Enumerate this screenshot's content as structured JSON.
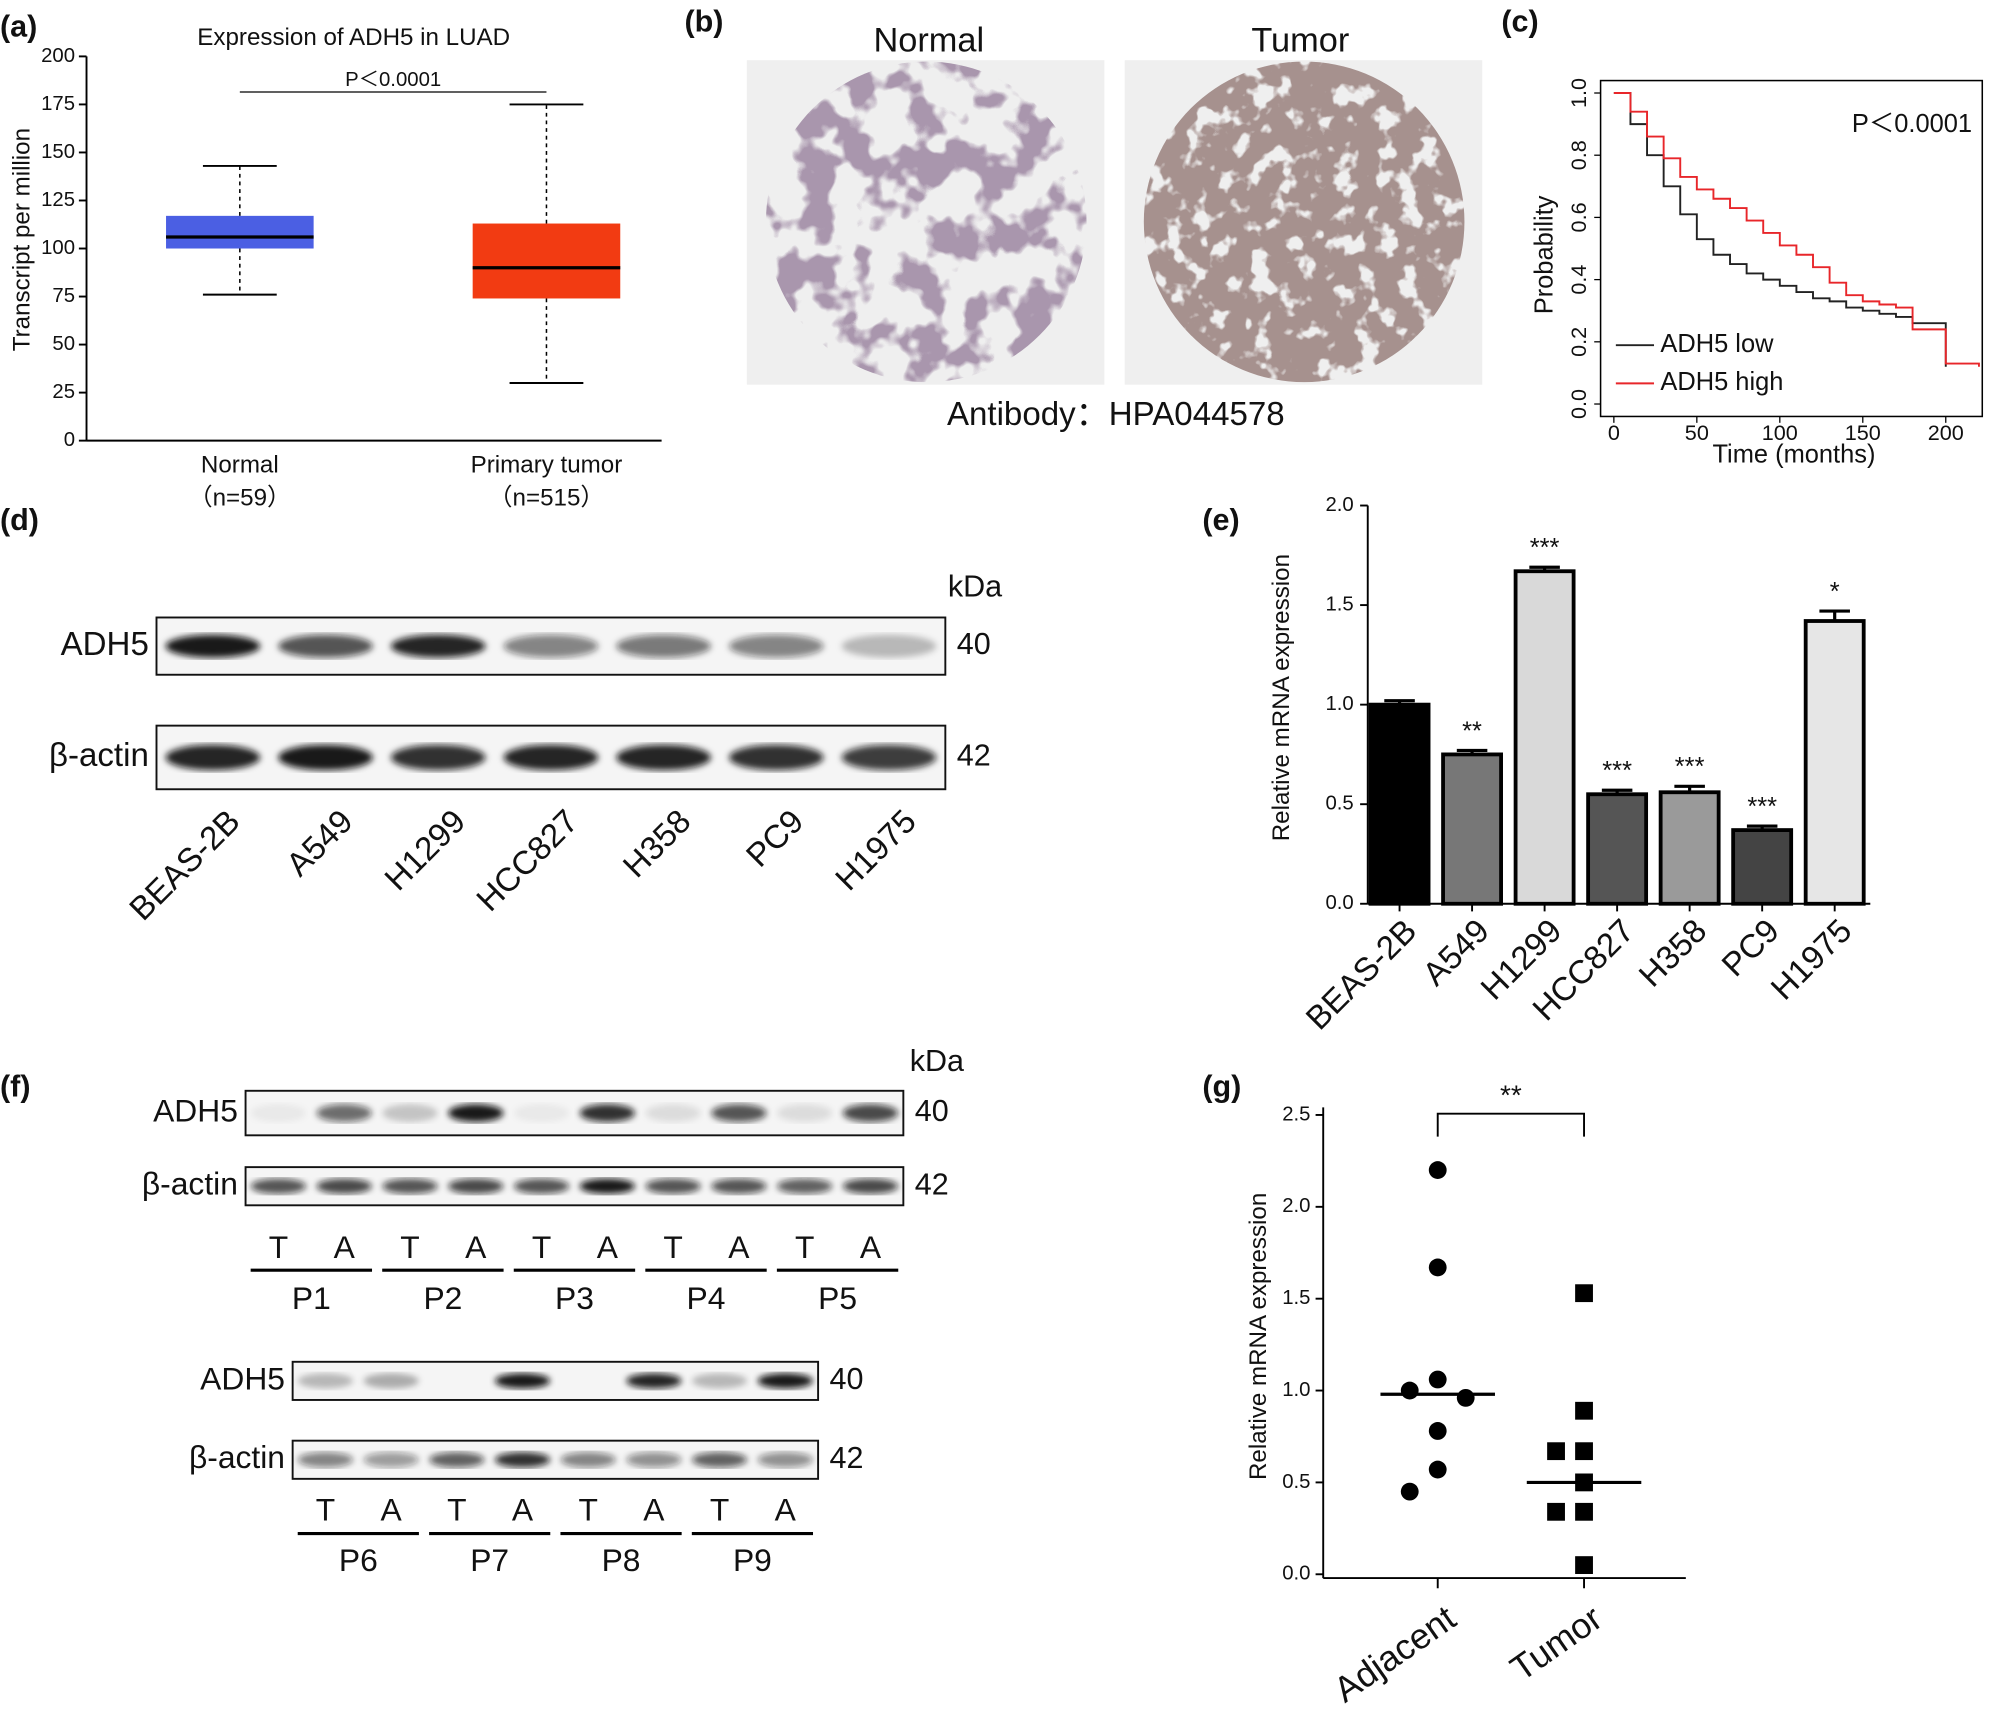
{
  "panel_labels": [
    "(a)",
    "(b)",
    "(c)",
    "(d)",
    "(e)",
    "(f)",
    "(g)"
  ],
  "chart_data": [
    {
      "type": "box",
      "title": "Expression of ADH5 in LUAD",
      "ylabel": "Transcript per million",
      "categories": [
        "Normal",
        "Primary tumor"
      ],
      "sample_sizes": [
        "（n=59）",
        "（n=515）"
      ],
      "boxes": [
        {
          "min": 76,
          "q1": 100,
          "median": 106,
          "q3": 117,
          "max": 143,
          "color": "#4b5fe3"
        },
        {
          "min": 30,
          "q1": 74,
          "median": 90,
          "q3": 113,
          "max": 175,
          "color": "#f23b12"
        }
      ],
      "ylim": [
        0,
        200
      ],
      "yticks": [
        0,
        25,
        50,
        75,
        100,
        125,
        150,
        175,
        200
      ],
      "annotation": "P＜0.0001"
    },
    {
      "type": "line",
      "xlabel": "Time (months)",
      "ylabel": "Probability",
      "x": [
        0,
        10,
        20,
        30,
        40,
        50,
        60,
        70,
        80,
        90,
        100,
        110,
        120,
        130,
        140,
        150,
        160,
        170,
        180,
        190,
        200,
        210,
        220
      ],
      "series": [
        {
          "name": "ADH5 low",
          "color": "#222222",
          "values": [
            1,
            0.9,
            0.8,
            0.7,
            0.61,
            0.53,
            0.48,
            0.45,
            0.42,
            0.4,
            0.38,
            0.36,
            0.34,
            0.33,
            0.31,
            0.3,
            0.29,
            0.28,
            0.26,
            0.26,
            0.12,
            null,
            null
          ]
        },
        {
          "name": "ADH5 high",
          "color": "#e8262a",
          "values": [
            1,
            0.94,
            0.86,
            0.79,
            0.73,
            0.69,
            0.66,
            0.63,
            0.59,
            0.55,
            0.51,
            0.48,
            0.44,
            0.39,
            0.35,
            0.33,
            0.32,
            0.31,
            0.24,
            0.24,
            0.13,
            0.13,
            0.12
          ]
        }
      ],
      "xlim": [
        -8,
        222
      ],
      "ylim": [
        -0.04,
        1.04
      ],
      "xticks": [
        0,
        50,
        100,
        150,
        200
      ],
      "yticks": [
        {
          "value": 0,
          "label": "0.0"
        },
        0.2,
        0.4,
        0.6,
        0.8,
        {
          "value": 1,
          "label": "1.0"
        }
      ],
      "annotation": "P＜0.0001",
      "legend": "lower left"
    },
    {
      "type": "bar",
      "ylabel": "Relative mRNA expression",
      "categories": [
        "BEAS-2B",
        "A549",
        "H1299",
        "HCC827",
        "H358",
        "PC9",
        "H1975"
      ],
      "values": [
        1.0,
        0.75,
        1.67,
        0.55,
        0.56,
        0.37,
        1.42
      ],
      "errors": [
        0.02,
        0.02,
        0.02,
        0.02,
        0.03,
        0.02,
        0.05
      ],
      "colors": [
        "#000000",
        "#777777",
        "#d9d9d9",
        "#555555",
        "#9a9a9a",
        "#444444",
        "#e6e6e6"
      ],
      "edgecolor": "#000000",
      "significance": [
        null,
        "**",
        "***",
        "***",
        "***",
        "***",
        "*"
      ],
      "ylim": [
        0,
        2
      ],
      "yticks": [
        {
          "value": 0,
          "label": "0.0"
        },
        0.5,
        {
          "value": 1,
          "label": "1.0"
        },
        1.5,
        {
          "value": 2,
          "label": "2.0"
        }
      ]
    },
    {
      "type": "strip",
      "ylabel": "Relative mRNA expression",
      "categories": [
        "Adjacent",
        "Tumor"
      ],
      "values": [
        [
          2.2,
          1.67,
          1.06,
          1.0,
          0.96,
          0.78,
          0.57,
          0.45
        ],
        [
          1.53,
          0.89,
          0.67,
          0.67,
          0.5,
          0.34,
          0.34,
          0.05
        ]
      ],
      "medians": [
        0.98,
        0.5
      ],
      "markers": [
        "circle",
        "square"
      ],
      "color": "#000000",
      "ylim": [
        0,
        2.5
      ],
      "yticks": [
        {
          "value": 0,
          "label": "0.0"
        },
        0.5,
        {
          "value": 1,
          "label": "1.0"
        },
        1.5,
        {
          "value": 2,
          "label": "2.0"
        },
        2.5
      ],
      "annotation": "**"
    }
  ],
  "ihc": {
    "titles": [
      "Normal",
      "Tumor"
    ],
    "caption": "Antibody：HPA044578"
  },
  "blots": [
    {
      "unit": "kDa",
      "lanes": [
        "BEAS-2B",
        "A549",
        "H1299",
        "HCC827",
        "H358",
        "PC9",
        "H1975"
      ],
      "rows": [
        {
          "name": "ADH5",
          "kda": 40,
          "intensities": [
            0.95,
            0.7,
            0.9,
            0.5,
            0.55,
            0.5,
            0.25
          ]
        },
        {
          "name": "β-actin",
          "kda": 42,
          "intensities": [
            0.9,
            0.95,
            0.85,
            0.9,
            0.9,
            0.85,
            0.8
          ]
        }
      ]
    },
    {
      "unit": "kDa",
      "lane_labels": [
        "T",
        "A",
        "T",
        "A",
        "T",
        "A",
        "T",
        "A",
        "T",
        "A"
      ],
      "patients": [
        "P1",
        "P2",
        "P3",
        "P4",
        "P5"
      ],
      "rows": [
        {
          "name": "ADH5",
          "kda": 40,
          "intensities": [
            0.05,
            0.6,
            0.2,
            0.95,
            0.05,
            0.85,
            0.1,
            0.7,
            0.1,
            0.75
          ]
        },
        {
          "name": "β-actin",
          "kda": 42,
          "intensities": [
            0.7,
            0.75,
            0.7,
            0.75,
            0.7,
            0.95,
            0.7,
            0.7,
            0.65,
            0.75
          ]
        }
      ]
    },
    {
      "lane_labels": [
        "T",
        "A",
        "T",
        "A",
        "T",
        "A",
        "T",
        "A"
      ],
      "patients": [
        "P6",
        "P7",
        "P8",
        "P9"
      ],
      "rows": [
        {
          "name": "ADH5",
          "kda": 40,
          "intensities": [
            0.25,
            0.3,
            0.0,
            0.95,
            0.0,
            0.9,
            0.25,
            0.95
          ]
        },
        {
          "name": "β-actin",
          "kda": 42,
          "intensities": [
            0.5,
            0.4,
            0.65,
            0.85,
            0.5,
            0.45,
            0.65,
            0.45
          ]
        }
      ]
    }
  ]
}
